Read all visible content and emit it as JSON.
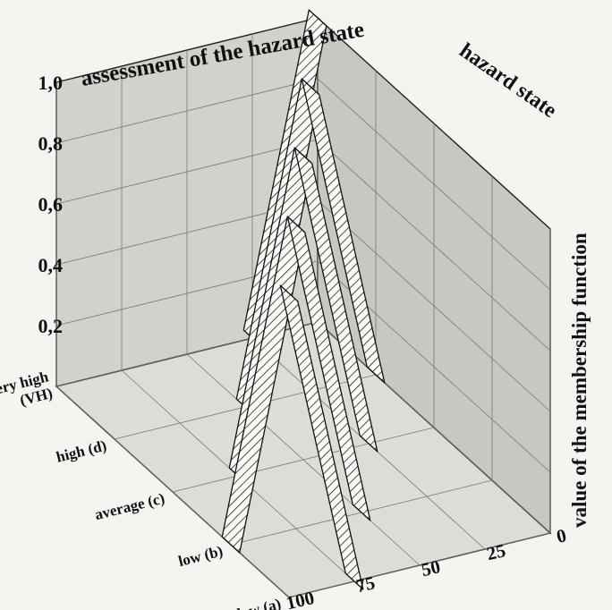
{
  "chart_data": {
    "type": "3d-bar-ribbon",
    "title": "assessment of the hazard state",
    "depth_axis_label": "hazard state",
    "zlabel": "value of the membership function",
    "zlim": [
      0,
      1
    ],
    "z_ticks": [
      "0,2",
      "0,4",
      "0,6",
      "0,8",
      "1,0"
    ],
    "categories": [
      "very high\n(VH)",
      "high (d)",
      "average (c)",
      "low (b)",
      "very low (a)"
    ],
    "category_values": [
      "very high (VH)",
      "high (d)",
      "average (c)",
      "low (b)",
      "very low (a)"
    ],
    "x_ticks": [
      "100",
      "75",
      "50",
      "25",
      "0"
    ],
    "x_values": [
      100,
      75,
      50,
      25,
      0
    ],
    "series": [
      {
        "category": "very low (a)",
        "points": [
          [
            100,
            1.0
          ],
          [
            75,
            0.0
          ]
        ]
      },
      {
        "category": "low (b)",
        "points": [
          [
            100,
            0.0
          ],
          [
            75,
            1.0
          ],
          [
            50,
            0.0
          ]
        ]
      },
      {
        "category": "average (c)",
        "points": [
          [
            75,
            0.0
          ],
          [
            50,
            1.0
          ],
          [
            25,
            0.0
          ]
        ]
      },
      {
        "category": "high (d)",
        "points": [
          [
            50,
            0.0
          ],
          [
            25,
            1.0
          ],
          [
            0,
            0.0
          ]
        ]
      },
      {
        "category": "very high (VH)",
        "points": [
          [
            25,
            0.0
          ],
          [
            0,
            1.0
          ]
        ]
      }
    ],
    "grid": true,
    "fill_pattern": "diagonal-hatch"
  }
}
